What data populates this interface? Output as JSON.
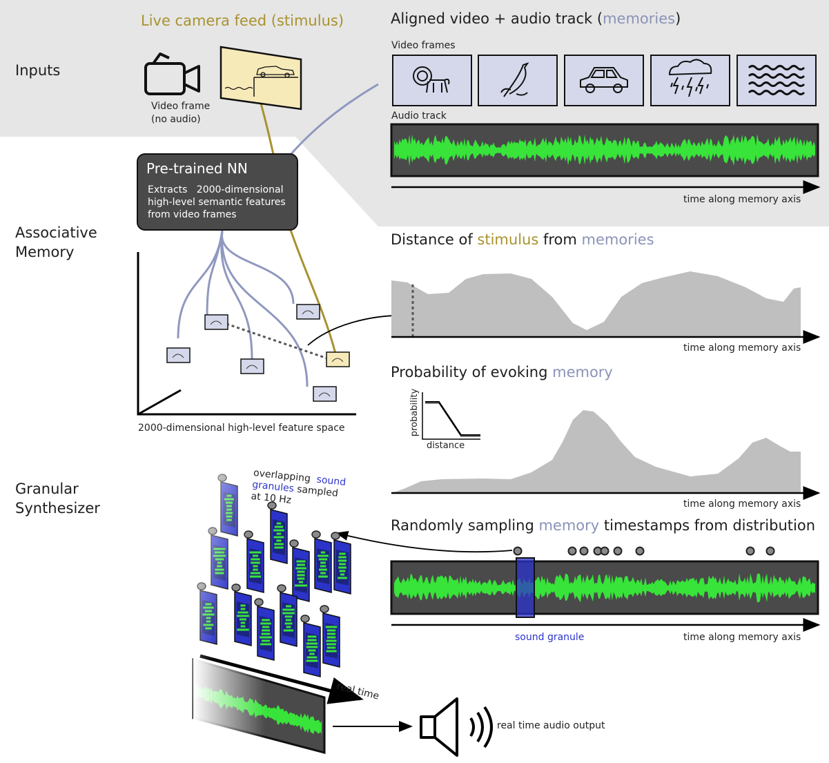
{
  "sections": {
    "inputs": "Inputs",
    "associative_memory": [
      "Associative",
      "Memory"
    ],
    "granular_synth": [
      "Granular",
      "Synthesizer"
    ]
  },
  "live_feed": {
    "title": "Live camera feed (stimulus)",
    "camera_caption": [
      "Video frame",
      "(no audio)"
    ]
  },
  "aligned_track": {
    "title_prefix": "Aligned video + audio track (",
    "title_highlight": "memories",
    "title_suffix": ")",
    "video_frames_label": "Video frames",
    "frames": [
      "lion-icon",
      "bird-icon",
      "car-icon",
      "storm-icon",
      "waves-icon"
    ],
    "audio_label": "Audio track",
    "axis_label": "time along memory axis"
  },
  "nn": {
    "title": "Pre-trained NN",
    "body": "Extracts   2000-dimensional\nhigh-level semantic features\nfrom video frames"
  },
  "feature_space": {
    "caption": "2000-dimensional high-level feature space",
    "items": [
      "bird",
      "lion",
      "storm",
      "waves",
      "car",
      "stimulus"
    ]
  },
  "distance_plot": {
    "title_a": "Distance of ",
    "title_stim": "stimulus",
    "title_b": " from ",
    "title_mem": "memories",
    "axis_label": "time along memory axis"
  },
  "probability_plot": {
    "title_a": "Probability of evoking ",
    "title_mem": "memory",
    "inset_ylabel": "probability",
    "inset_xlabel": "distance",
    "axis_label": "time along memory axis"
  },
  "sampling": {
    "title_a": "Randomly sampling ",
    "title_mem": "memory",
    "title_b": " timestamps from distribution",
    "granule_label": "sound granule",
    "axis_label": "time along memory axis",
    "sample_count": 10
  },
  "granules": {
    "note_a": "overlapping",
    "note_sound": "sound",
    "note_granules": "granules",
    "note_b": "sampled",
    "note_c": "at 10 Hz",
    "realtime_label": "real time",
    "output_label": "real time audio output"
  },
  "colors": {
    "stimulus": "#a8922e",
    "memory": "#8a93b8",
    "waveform": "#38e33a",
    "granule": "#2b33c9",
    "panel_bg": "#e6e6e6",
    "plot_fill": "#bfbfbf",
    "dark": "#474747"
  }
}
